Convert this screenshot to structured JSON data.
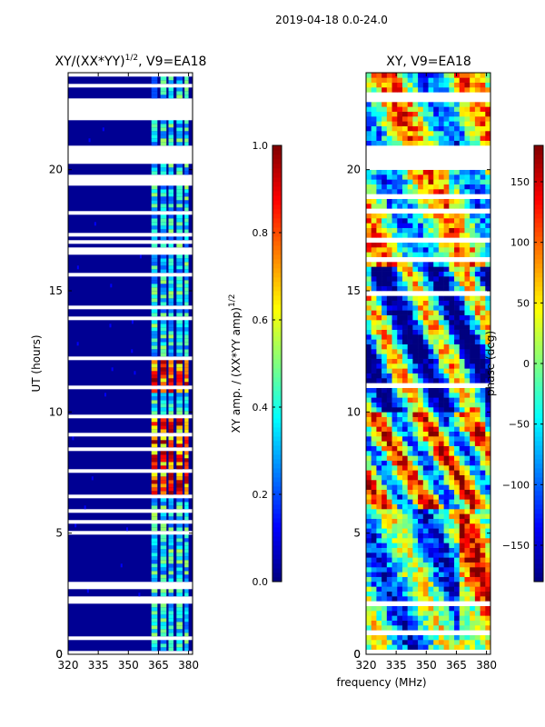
{
  "suptitle": "2019-04-18 0.0-24.0",
  "shared": {
    "xlabel": "frequency (MHz)",
    "ylabel": "UT (hours)"
  },
  "colors": {
    "white": "#ffffff",
    "jet": [
      "#00007f",
      "#0000ff",
      "#007fff",
      "#00ffff",
      "#7fff7f",
      "#ffff00",
      "#ff7f00",
      "#ff0000",
      "#7f0000"
    ]
  },
  "chart_data": [
    {
      "type": "heatmap",
      "title": "XY/(XX*YY)",
      "title_sup": "1/2",
      "title_suffix": ", V9=EA18",
      "xlabel": "",
      "ylabel": "UT (hours)",
      "xlim": [
        320,
        382
      ],
      "ylim": [
        0,
        24
      ],
      "xticks": [
        320,
        335,
        350,
        365,
        380
      ],
      "yticks": [
        0,
        5,
        10,
        15,
        20
      ],
      "data_gaps_hours": [
        [
          20.2,
          21.0
        ],
        [
          22.0,
          23.0
        ]
      ],
      "colorbar": {
        "label": "XY amp. / (XX*YY amp)",
        "label_sup": "1/2",
        "range": [
          0.0,
          1.0
        ],
        "ticks": [
          "0.0",
          "0.2",
          "0.4",
          "0.6",
          "0.8",
          "1.0"
        ],
        "tick_values": [
          0.0,
          0.2,
          0.4,
          0.6,
          0.8,
          1.0
        ]
      }
    },
    {
      "type": "heatmap",
      "title": "XY, V9=EA18",
      "xlabel": "frequency (MHz)",
      "ylabel": "",
      "xlim": [
        320,
        382
      ],
      "ylim": [
        0,
        24
      ],
      "xticks": [
        320,
        335,
        350,
        365,
        380
      ],
      "yticks": [
        0,
        5,
        10,
        15,
        20
      ],
      "data_gaps_hours": [
        [
          20.2,
          21.0
        ]
      ],
      "colorbar": {
        "label": "phase (deg)",
        "range": [
          -180,
          180
        ],
        "ticks": [
          "−150",
          "−100",
          "−50",
          "0",
          "50",
          "100",
          "150"
        ],
        "tick_values": [
          -150,
          -100,
          -50,
          0,
          50,
          100,
          150
        ]
      }
    }
  ]
}
